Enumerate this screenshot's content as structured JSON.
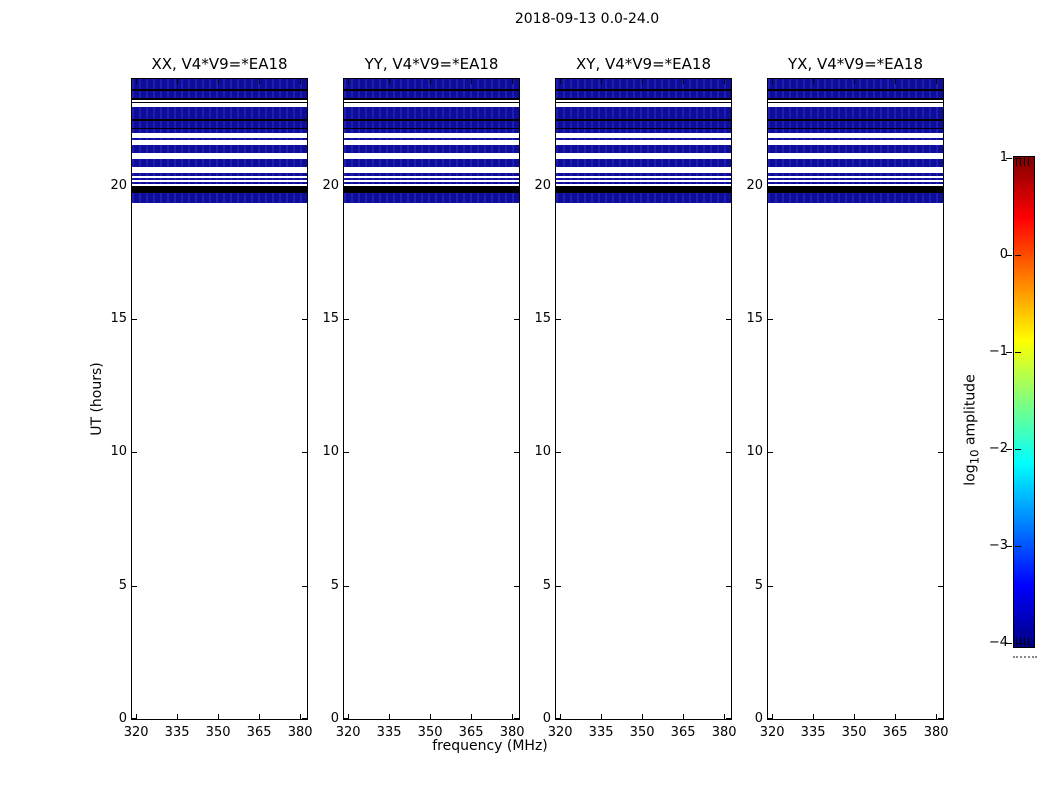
{
  "figure": {
    "title": "2018-09-13 0.0-24.0",
    "xlabel": "frequency (MHz)",
    "ylabel": "UT (hours)"
  },
  "chart_data": {
    "type": "heatmap",
    "title": "2018-09-13 0.0-24.0",
    "xlabel": "frequency (MHz)",
    "ylabel": "UT (hours)",
    "subplot_titles": [
      "XX, V4*V9=*EA18",
      "YY, V4*V9=*EA18",
      "XY, V4*V9=*EA18",
      "YX, V4*V9=*EA18"
    ],
    "x_ticks": [
      320,
      335,
      350,
      365,
      380
    ],
    "x_range": [
      318.5,
      382.5
    ],
    "y_ticks": [
      0,
      5,
      10,
      15,
      20
    ],
    "y_range": [
      0,
      24
    ],
    "note": "All four polarization panels show the same pattern: data only between UT 19.33 and 24.0 as horizontal bands; navy bands are low amplitude (~1e-4), black rows near-zero/flagged, white gaps no data; entirely empty (white) below UT 19.33.",
    "bands": [
      {
        "ut_top": 24.0,
        "ut_bottom": 23.63,
        "color": "navy"
      },
      {
        "ut_top": 23.63,
        "ut_bottom": 23.55,
        "color": "black"
      },
      {
        "ut_top": 23.55,
        "ut_bottom": 23.29,
        "color": "navy"
      },
      {
        "ut_top": 23.29,
        "ut_bottom": 23.21,
        "color": "black"
      },
      {
        "ut_top": 23.21,
        "ut_bottom": 23.14,
        "color": "white"
      },
      {
        "ut_top": 23.14,
        "ut_bottom": 23.1,
        "color": "black"
      },
      {
        "ut_top": 23.1,
        "ut_bottom": 22.95,
        "color": "white"
      },
      {
        "ut_top": 22.95,
        "ut_bottom": 22.5,
        "color": "navy"
      },
      {
        "ut_top": 22.5,
        "ut_bottom": 22.43,
        "color": "black"
      },
      {
        "ut_top": 22.43,
        "ut_bottom": 22.17,
        "color": "navy"
      },
      {
        "ut_top": 22.17,
        "ut_bottom": 22.13,
        "color": "black"
      },
      {
        "ut_top": 22.13,
        "ut_bottom": 21.98,
        "color": "navy"
      },
      {
        "ut_top": 21.98,
        "ut_bottom": 21.79,
        "color": "white"
      },
      {
        "ut_top": 21.79,
        "ut_bottom": 21.72,
        "color": "navy"
      },
      {
        "ut_top": 21.72,
        "ut_bottom": 21.53,
        "color": "white"
      },
      {
        "ut_top": 21.53,
        "ut_bottom": 21.23,
        "color": "navy"
      },
      {
        "ut_top": 21.23,
        "ut_bottom": 21.01,
        "color": "white"
      },
      {
        "ut_top": 21.01,
        "ut_bottom": 20.71,
        "color": "navy"
      },
      {
        "ut_top": 20.71,
        "ut_bottom": 20.49,
        "color": "white"
      },
      {
        "ut_top": 20.49,
        "ut_bottom": 20.37,
        "color": "navy"
      },
      {
        "ut_top": 20.37,
        "ut_bottom": 20.3,
        "color": "white"
      },
      {
        "ut_top": 20.3,
        "ut_bottom": 20.22,
        "color": "navy"
      },
      {
        "ut_top": 20.22,
        "ut_bottom": 20.15,
        "color": "white"
      },
      {
        "ut_top": 20.15,
        "ut_bottom": 20.07,
        "color": "navy"
      },
      {
        "ut_top": 20.07,
        "ut_bottom": 20.0,
        "color": "white"
      },
      {
        "ut_top": 20.0,
        "ut_bottom": 19.74,
        "color": "black"
      },
      {
        "ut_top": 19.74,
        "ut_bottom": 19.33,
        "color": "navy"
      }
    ],
    "band_colors": {
      "navy": "#0d0d9a",
      "black": "#000000",
      "white": "#ffffff"
    },
    "colorbar": {
      "label_prefix": "log",
      "label_sub": "10",
      "label_suffix": " amplitude",
      "ticks": [
        1,
        0,
        -1,
        -2,
        -3,
        -4
      ],
      "range": [
        -4,
        1
      ],
      "colormap": "jet",
      "gradient_top_to_bottom": [
        "#800000",
        "#ff0000",
        "#ffff00",
        "#00ffff",
        "#0000ff",
        "#000080"
      ],
      "gradient_stops_pct": [
        0,
        12.5,
        37.5,
        62.5,
        87.5,
        100
      ]
    }
  }
}
